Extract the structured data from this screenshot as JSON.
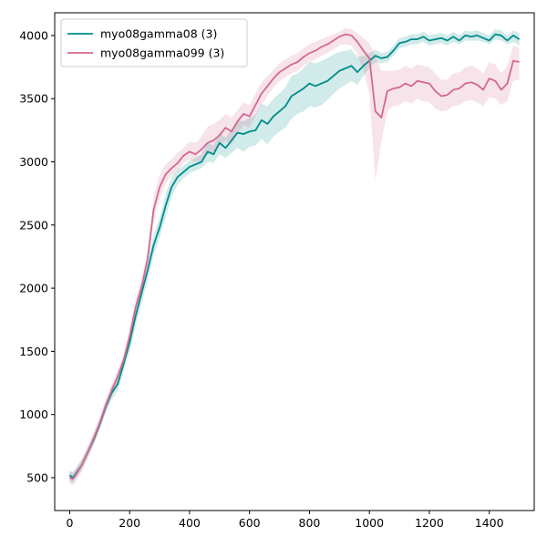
{
  "chart_data": {
    "type": "line",
    "title": "",
    "xlabel": "",
    "ylabel": "",
    "xlim": [
      -50,
      1550
    ],
    "ylim": [
      240,
      4180
    ],
    "xticks": [
      0,
      200,
      400,
      600,
      800,
      1000,
      1200,
      1400
    ],
    "yticks": [
      500,
      1000,
      1500,
      2000,
      2500,
      3000,
      3500,
      4000
    ],
    "grid": false,
    "legend_position": "top-left",
    "series": [
      {
        "name": "myo08gamma08 (3)",
        "color": "#008b8b",
        "x": [
          0,
          10,
          20,
          40,
          60,
          80,
          100,
          120,
          140,
          160,
          180,
          200,
          220,
          240,
          260,
          280,
          300,
          320,
          340,
          360,
          380,
          400,
          420,
          440,
          460,
          480,
          500,
          520,
          540,
          560,
          580,
          600,
          620,
          640,
          660,
          680,
          700,
          720,
          740,
          760,
          780,
          800,
          820,
          840,
          860,
          880,
          900,
          920,
          940,
          960,
          980,
          1000,
          1020,
          1040,
          1060,
          1080,
          1100,
          1120,
          1140,
          1160,
          1180,
          1200,
          1220,
          1240,
          1260,
          1280,
          1300,
          1320,
          1340,
          1360,
          1380,
          1400,
          1420,
          1440,
          1460,
          1480,
          1500
        ],
        "y": [
          520,
          500,
          530,
          600,
          700,
          800,
          920,
          1060,
          1170,
          1240,
          1400,
          1570,
          1780,
          1960,
          2140,
          2340,
          2480,
          2650,
          2800,
          2880,
          2920,
          2960,
          2980,
          3000,
          3080,
          3060,
          3150,
          3110,
          3170,
          3230,
          3220,
          3240,
          3250,
          3330,
          3300,
          3360,
          3400,
          3440,
          3520,
          3550,
          3580,
          3620,
          3600,
          3620,
          3640,
          3680,
          3720,
          3740,
          3760,
          3710,
          3760,
          3800,
          3840,
          3820,
          3830,
          3880,
          3940,
          3950,
          3970,
          3970,
          3990,
          3960,
          3970,
          3980,
          3960,
          3990,
          3960,
          4000,
          3990,
          4000,
          3980,
          3960,
          4010,
          4000,
          3960,
          4000,
          3970
        ],
        "lower": [
          470,
          460,
          490,
          560,
          660,
          760,
          880,
          1010,
          1120,
          1190,
          1340,
          1500,
          1700,
          1880,
          2060,
          2260,
          2400,
          2560,
          2720,
          2820,
          2870,
          2910,
          2930,
          2950,
          3000,
          2990,
          3060,
          3030,
          3070,
          3110,
          3080,
          3120,
          3130,
          3180,
          3140,
          3200,
          3240,
          3270,
          3340,
          3380,
          3400,
          3440,
          3430,
          3450,
          3490,
          3540,
          3580,
          3610,
          3640,
          3610,
          3680,
          3740,
          3790,
          3780,
          3790,
          3840,
          3900,
          3910,
          3930,
          3930,
          3950,
          3920,
          3930,
          3940,
          3920,
          3950,
          3930,
          3960,
          3960,
          3960,
          3950,
          3930,
          3970,
          3960,
          3930,
          3950,
          3920
        ],
        "upper": [
          560,
          540,
          570,
          640,
          740,
          840,
          960,
          1100,
          1220,
          1290,
          1450,
          1630,
          1850,
          2030,
          2220,
          2420,
          2560,
          2740,
          2880,
          2940,
          2970,
          3010,
          3030,
          3060,
          3150,
          3130,
          3230,
          3190,
          3260,
          3330,
          3320,
          3350,
          3370,
          3460,
          3440,
          3500,
          3540,
          3590,
          3680,
          3700,
          3740,
          3790,
          3780,
          3800,
          3820,
          3850,
          3870,
          3880,
          3890,
          3830,
          3840,
          3860,
          3890,
          3860,
          3870,
          3920,
          3980,
          3990,
          4010,
          4010,
          4030,
          4000,
          4010,
          4020,
          4000,
          4030,
          4000,
          4040,
          4030,
          4040,
          4020,
          4000,
          4050,
          4040,
          4000,
          4040,
          4020
        ]
      },
      {
        "name": "myo08gamma099 (3)",
        "color": "#d4688e",
        "x": [
          0,
          10,
          20,
          40,
          60,
          80,
          100,
          120,
          140,
          160,
          180,
          200,
          220,
          240,
          260,
          280,
          300,
          320,
          340,
          360,
          380,
          400,
          420,
          440,
          460,
          480,
          500,
          520,
          540,
          560,
          580,
          600,
          620,
          640,
          660,
          680,
          700,
          720,
          740,
          760,
          780,
          800,
          820,
          840,
          860,
          880,
          900,
          920,
          940,
          960,
          980,
          1000,
          1020,
          1040,
          1060,
          1080,
          1100,
          1120,
          1140,
          1160,
          1180,
          1200,
          1220,
          1240,
          1260,
          1280,
          1300,
          1320,
          1340,
          1360,
          1380,
          1400,
          1420,
          1440,
          1460,
          1480,
          1500
        ],
        "y": [
          500,
          490,
          520,
          600,
          700,
          810,
          930,
          1070,
          1190,
          1300,
          1430,
          1620,
          1850,
          2010,
          2230,
          2620,
          2800,
          2900,
          2950,
          2990,
          3050,
          3080,
          3060,
          3100,
          3150,
          3170,
          3210,
          3270,
          3240,
          3320,
          3380,
          3360,
          3450,
          3540,
          3600,
          3660,
          3710,
          3740,
          3770,
          3790,
          3830,
          3860,
          3880,
          3910,
          3930,
          3960,
          3990,
          4010,
          4000,
          3950,
          3880,
          3820,
          3400,
          3350,
          3560,
          3580,
          3590,
          3620,
          3600,
          3640,
          3630,
          3620,
          3560,
          3520,
          3530,
          3570,
          3580,
          3620,
          3630,
          3610,
          3570,
          3660,
          3640,
          3570,
          3620,
          3800,
          3790
        ],
        "lower": [
          450,
          440,
          470,
          550,
          650,
          760,
          880,
          1020,
          1140,
          1250,
          1380,
          1570,
          1790,
          1950,
          2160,
          2520,
          2710,
          2830,
          2890,
          2930,
          2990,
          3020,
          3000,
          3010,
          3060,
          3080,
          3120,
          3170,
          3140,
          3220,
          3290,
          3270,
          3360,
          3450,
          3520,
          3590,
          3640,
          3670,
          3700,
          3720,
          3760,
          3790,
          3810,
          3840,
          3860,
          3890,
          3920,
          3930,
          3920,
          3850,
          3720,
          3540,
          2850,
          3160,
          3400,
          3440,
          3450,
          3480,
          3460,
          3500,
          3480,
          3470,
          3420,
          3400,
          3410,
          3440,
          3450,
          3480,
          3490,
          3470,
          3440,
          3510,
          3500,
          3450,
          3480,
          3640,
          3650
        ],
        "upper": [
          550,
          540,
          570,
          650,
          750,
          860,
          980,
          1120,
          1240,
          1350,
          1480,
          1670,
          1910,
          2070,
          2300,
          2720,
          2900,
          2980,
          3020,
          3070,
          3110,
          3160,
          3150,
          3200,
          3280,
          3300,
          3330,
          3380,
          3350,
          3410,
          3470,
          3450,
          3540,
          3630,
          3680,
          3730,
          3780,
          3810,
          3840,
          3860,
          3900,
          3930,
          3950,
          3970,
          3990,
          4010,
          4030,
          4060,
          4050,
          4020,
          3980,
          3940,
          3840,
          3720,
          3720,
          3720,
          3730,
          3760,
          3740,
          3770,
          3760,
          3750,
          3700,
          3650,
          3650,
          3700,
          3710,
          3750,
          3760,
          3740,
          3700,
          3790,
          3770,
          3700,
          3760,
          3920,
          3900
        ]
      }
    ]
  }
}
